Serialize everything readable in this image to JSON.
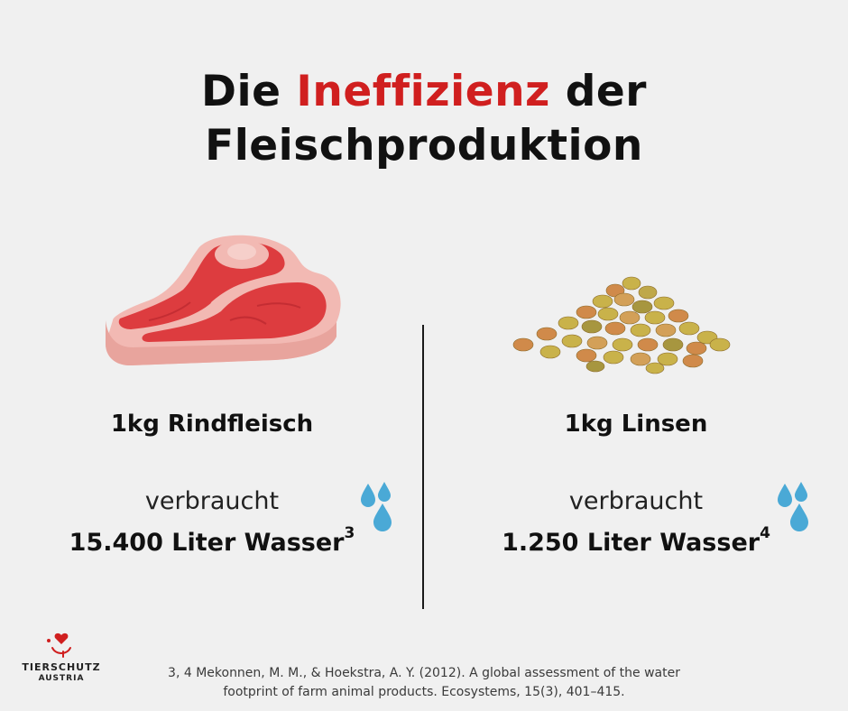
{
  "title": {
    "line1_prefix": "Die",
    "line1_highlight": "Ineffizienz",
    "line1_suffix": "der",
    "line2": "Fleischproduktion",
    "highlight_color": "#d01f1f"
  },
  "left": {
    "icon": "steak-icon",
    "label": "1kg Rindfleisch",
    "verb": "verbraucht",
    "amount": "15.400 Liter Wasser",
    "footnote": "3",
    "drop_icon": "water-drops-icon"
  },
  "right": {
    "icon": "lentils-icon",
    "label": "1kg Linsen",
    "verb": "verbraucht",
    "amount": "1.250 Liter Wasser",
    "footnote": "4",
    "drop_icon": "water-drops-icon"
  },
  "logo": {
    "name_line1": "TIERSCHUTZ",
    "name_line2": "AUSTRIA",
    "accent_color": "#d01f1f"
  },
  "citation": {
    "line1": "3, 4 Mekonnen, M. M., & Hoekstra, A. Y. (2012). A global assessment of the water",
    "line2": "footprint of farm animal products. Ecosystems, 15(3), 401–415."
  }
}
